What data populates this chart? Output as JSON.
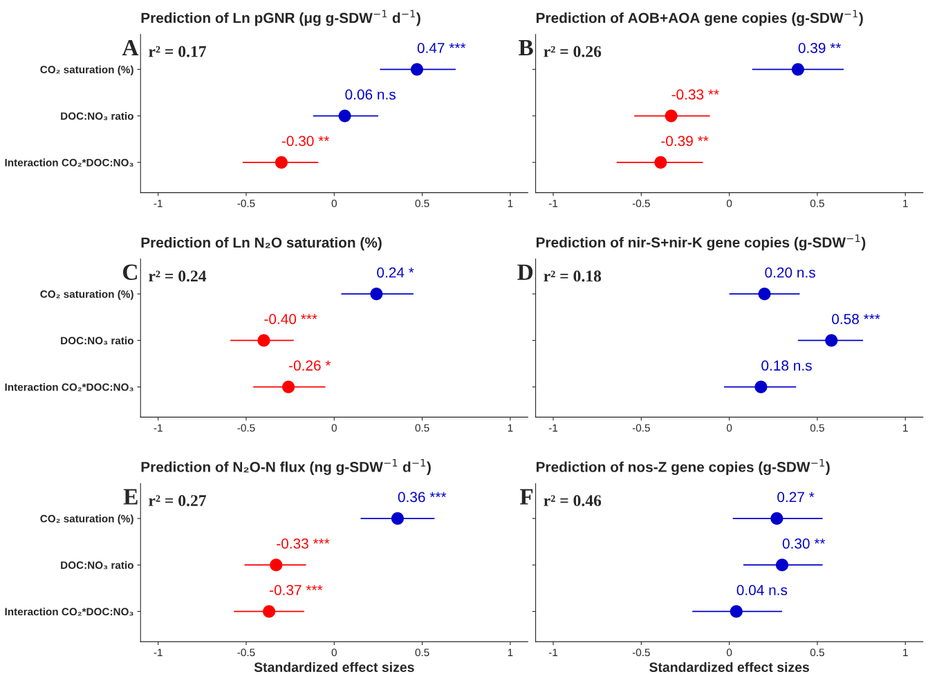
{
  "chart_data": [
    {
      "type": "scatter",
      "orientation": "horizontal",
      "title": "Prediction of Ln pGNR (μg g-SDW$^{−1}$ d$^{−1}$)",
      "categories": [
        "CO₂ saturation (%)",
        "DOC:NO₃ ratio",
        "Interaction CO₂*DOC:NO₃"
      ],
      "xlim": [
        -1.1,
        1.1
      ],
      "xticks": [
        -1,
        -0.5,
        0,
        0.5,
        1
      ],
      "grid": false,
      "tick_labels": true,
      "annotations": [
        "A",
        "r² = 0.17"
      ],
      "series": [
        {
          "values": [
            0.47,
            0.06,
            -0.3
          ],
          "colors": [
            "#0000cc",
            "#0000cc",
            "#ff0000"
          ],
          "errors": [
            [
              0.26,
              0.69
            ],
            [
              -0.12,
              0.25
            ],
            [
              -0.52,
              -0.09
            ]
          ],
          "value_labels": [
            "0.47 ***",
            "0.06 n.s",
            "-0.30 **"
          ]
        }
      ]
    },
    {
      "type": "scatter",
      "orientation": "horizontal",
      "title": "Prediction of AOB+AOA gene copies (g-SDW$^{−1}$)",
      "categories": [
        null,
        null,
        null
      ],
      "xlim": [
        -1.1,
        1.1
      ],
      "xticks": [
        -1,
        -0.5,
        0,
        0.5,
        1
      ],
      "grid": false,
      "annotations": [
        "B",
        "r² = 0.26"
      ],
      "series": [
        {
          "values": [
            0.39,
            -0.33,
            -0.39
          ],
          "colors": [
            "#0000cc",
            "#ff0000",
            "#ff0000"
          ],
          "errors": [
            [
              0.13,
              0.65
            ],
            [
              -0.54,
              -0.11
            ],
            [
              -0.64,
              -0.15
            ]
          ],
          "value_labels": [
            "0.39 **",
            "-0.33 **",
            "-0.39 **"
          ]
        }
      ]
    },
    {
      "type": "scatter",
      "orientation": "horizontal",
      "title": "Prediction of Ln N₂O saturation (%)",
      "categories": [
        "CO₂ saturation (%)",
        "DOC:NO₃ ratio",
        "Interaction CO₂*DOC:NO₃"
      ],
      "xlim": [
        -1.1,
        1.1
      ],
      "xticks": [
        -1,
        -0.5,
        0,
        0.5,
        1
      ],
      "grid": false,
      "tick_labels": true,
      "annotations": [
        "C",
        "r² = 0.24"
      ],
      "series": [
        {
          "values": [
            0.24,
            -0.4,
            -0.26
          ],
          "colors": [
            "#0000cc",
            "#ff0000",
            "#ff0000"
          ],
          "errors": [
            [
              0.04,
              0.45
            ],
            [
              -0.59,
              -0.23
            ],
            [
              -0.46,
              -0.05
            ]
          ],
          "value_labels": [
            "0.24 *",
            "-0.40 ***",
            "-0.26 *"
          ]
        }
      ]
    },
    {
      "type": "scatter",
      "orientation": "horizontal",
      "title": "Prediction of nir-S+nir-K gene copies (g-SDW$^{−1}$)",
      "categories": [
        null,
        null,
        null
      ],
      "xlim": [
        -1.1,
        1.1
      ],
      "xticks": [
        -1,
        -0.5,
        0,
        0.5,
        1
      ],
      "grid": false,
      "annotations": [
        "D",
        "r² = 0.18"
      ],
      "series": [
        {
          "values": [
            0.2,
            0.58,
            0.18
          ],
          "colors": [
            "#0000cc",
            "#0000cc",
            "#0000cc"
          ],
          "errors": [
            [
              0.0,
              0.4
            ],
            [
              0.39,
              0.76
            ],
            [
              -0.03,
              0.38
            ]
          ],
          "value_labels": [
            "0.20 n.s",
            "0.58 ***",
            "0.18 n.s"
          ]
        }
      ]
    },
    {
      "type": "scatter",
      "orientation": "horizontal",
      "title": "Prediction of N₂O-N flux (ng g-SDW$^{−1}$ d$^{−1}$)",
      "xlabel": "Standardized effect sizes",
      "categories": [
        "CO₂ saturation (%)",
        "DOC:NO₃ ratio",
        "Interaction CO₂*DOC:NO₃"
      ],
      "xlim": [
        -1.1,
        1.1
      ],
      "xticks": [
        -1,
        -0.5,
        0,
        0.5,
        1
      ],
      "grid": false,
      "tick_labels": true,
      "annotations": [
        "E",
        "r² = 0.27"
      ],
      "series": [
        {
          "values": [
            0.36,
            -0.33,
            -0.37
          ],
          "colors": [
            "#0000cc",
            "#ff0000",
            "#ff0000"
          ],
          "errors": [
            [
              0.15,
              0.57
            ],
            [
              -0.51,
              -0.16
            ],
            [
              -0.57,
              -0.17
            ]
          ],
          "value_labels": [
            "0.36 ***",
            "-0.33 ***",
            "-0.37 ***"
          ]
        }
      ]
    },
    {
      "type": "scatter",
      "orientation": "horizontal",
      "title": "Prediction of nos-Z gene copies (g-SDW$^{−1}$)",
      "xlabel": "Standardized effect sizes",
      "categories": [
        null,
        null,
        null
      ],
      "xlim": [
        -1.1,
        1.1
      ],
      "xticks": [
        -1,
        -0.5,
        0,
        0.5,
        1
      ],
      "grid": false,
      "annotations": [
        "F",
        "r² = 0.46"
      ],
      "series": [
        {
          "values": [
            0.27,
            0.3,
            0.04
          ],
          "colors": [
            "#0000cc",
            "#0000cc",
            "#0000cc"
          ],
          "errors": [
            [
              0.02,
              0.53
            ],
            [
              0.08,
              0.53
            ],
            [
              -0.21,
              0.3
            ]
          ],
          "value_labels": [
            "0.27 *",
            "0.30 **",
            "0.04 n.s"
          ]
        }
      ]
    }
  ]
}
